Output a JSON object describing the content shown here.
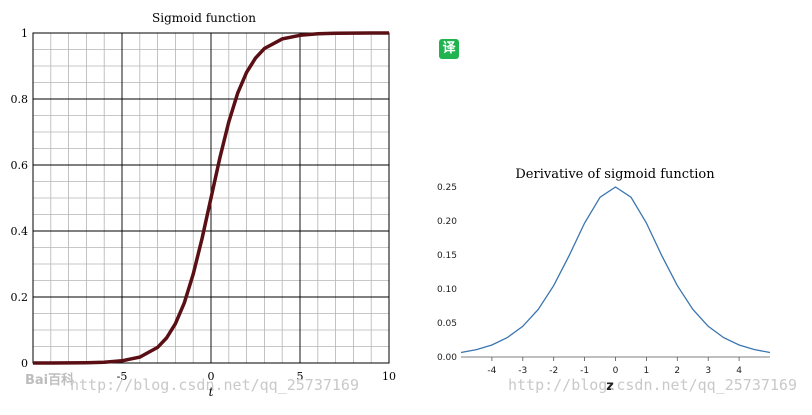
{
  "translate_badge": "译",
  "watermark": "http://blog.csdn.net/qq_25737169",
  "brand": "Bai百科",
  "chart_data": [
    {
      "type": "line",
      "title": "Sigmoid function",
      "xlabel": "t",
      "ylabel": "",
      "xlim": [
        -10,
        10
      ],
      "ylim": [
        0,
        1
      ],
      "x_ticks": [
        -5,
        0,
        5,
        10
      ],
      "y_ticks": [
        0,
        0.2,
        0.4,
        0.6,
        0.8,
        1
      ],
      "y_tick_labels": [
        "0",
        "0.2",
        "0.4",
        "0.6",
        "0.8",
        "1"
      ],
      "grid": true,
      "series": [
        {
          "color": "#5a0f15",
          "x": [
            -10,
            -9,
            -8,
            -7,
            -6,
            -5,
            -4,
            -3,
            -2.5,
            -2,
            -1.5,
            -1,
            -0.5,
            0,
            0.5,
            1,
            1.5,
            2,
            2.5,
            3,
            4,
            5,
            6,
            7,
            8,
            9,
            10
          ],
          "y": [
            4.54e-05,
            0.000123,
            0.000335,
            0.000911,
            0.00247,
            0.00669,
            0.018,
            0.0474,
            0.0759,
            0.119,
            0.182,
            0.269,
            0.378,
            0.5,
            0.622,
            0.731,
            0.818,
            0.881,
            0.924,
            0.953,
            0.982,
            0.993,
            0.9975,
            0.9991,
            0.9997,
            0.9999,
            0.99995
          ]
        }
      ]
    },
    {
      "type": "line",
      "title": "Derivative of sigmoid function",
      "xlabel": "z",
      "ylabel": "",
      "xlim": [
        -5,
        5
      ],
      "ylim": [
        0,
        0.25
      ],
      "x_ticks": [
        -4,
        -3,
        -2,
        -1,
        0,
        1,
        2,
        3,
        4
      ],
      "y_ticks": [
        0,
        0.05,
        0.1,
        0.15,
        0.2,
        0.25
      ],
      "y_tick_labels": [
        "0.00",
        "0.05",
        "0.10",
        "0.15",
        "0.20",
        "0.25"
      ],
      "grid": false,
      "series": [
        {
          "color": "#3b75af",
          "x": [
            -5,
            -4.5,
            -4,
            -3.5,
            -3,
            -2.5,
            -2,
            -1.5,
            -1,
            -0.5,
            0,
            0.5,
            1,
            1.5,
            2,
            2.5,
            3,
            3.5,
            4,
            4.5,
            5
          ],
          "y": [
            0.0066,
            0.0109,
            0.0177,
            0.0285,
            0.0452,
            0.0701,
            0.105,
            0.149,
            0.197,
            0.235,
            0.25,
            0.235,
            0.197,
            0.149,
            0.105,
            0.0701,
            0.0452,
            0.0285,
            0.0177,
            0.0109,
            0.0066
          ]
        }
      ]
    }
  ]
}
